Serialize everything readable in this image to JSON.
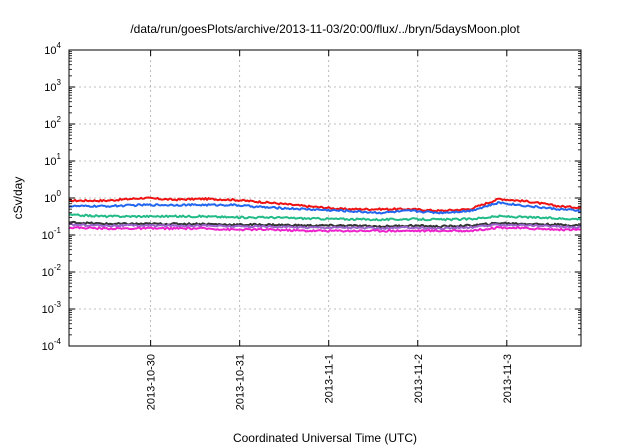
{
  "chart_data": {
    "type": "line",
    "title": "/data/run/goesPlots/archive/2013-11-03/20:00/flux/../bryn/5daysMoon.plot",
    "xlabel": "Coordinated Universal Time (UTC)",
    "ylabel": "cSv/day",
    "yscale": "log",
    "ylim": [
      0.0001,
      10000
    ],
    "xlim": [
      "2013-10-29 02:00",
      "2013-11-03 20:00"
    ],
    "grid": true,
    "legend": "none",
    "x_ticks": [
      "2013-10-30",
      "2013-10-31",
      "2013-11-1",
      "2013-11-2",
      "2013-11-3"
    ],
    "y_ticks": [
      {
        "value": 0.0001,
        "base": "10",
        "exp": "-4"
      },
      {
        "value": 0.001,
        "base": "10",
        "exp": "-3"
      },
      {
        "value": 0.01,
        "base": "10",
        "exp": "-2"
      },
      {
        "value": 0.1,
        "base": "10",
        "exp": "-1"
      },
      {
        "value": 1,
        "base": "10",
        "exp": "0"
      },
      {
        "value": 10,
        "base": "10",
        "exp": "1"
      },
      {
        "value": 100,
        "base": "10",
        "exp": "2"
      },
      {
        "value": 1000,
        "base": "10",
        "exp": "3"
      },
      {
        "value": 10000,
        "base": "10",
        "exp": "4"
      }
    ],
    "series": [
      {
        "color": "#ee1111",
        "x": [
          "2013-10-29 02:00",
          "2013-10-29 12:00",
          "2013-10-29 22:00",
          "2013-10-30 06:00",
          "2013-10-30 14:00",
          "2013-10-30 22:00",
          "2013-10-31 08:00",
          "2013-10-31 18:00",
          "2013-11-01 04:00",
          "2013-11-01 14:00",
          "2013-11-01 22:00",
          "2013-11-02 06:00",
          "2013-11-02 14:00",
          "2013-11-02 22:00",
          "2013-11-03 06:00",
          "2013-11-03 14:00",
          "2013-11-03 20:00"
        ],
        "y": [
          0.85,
          0.85,
          1.0,
          0.9,
          0.95,
          0.9,
          0.75,
          0.6,
          0.5,
          0.5,
          0.5,
          0.45,
          0.5,
          0.95,
          0.8,
          0.6,
          0.55
        ]
      },
      {
        "color": "#2266ee",
        "x": [
          "2013-10-29 02:00",
          "2013-10-29 12:00",
          "2013-10-29 22:00",
          "2013-10-30 06:00",
          "2013-10-30 14:00",
          "2013-10-30 22:00",
          "2013-10-31 08:00",
          "2013-10-31 18:00",
          "2013-11-01 04:00",
          "2013-11-01 14:00",
          "2013-11-01 22:00",
          "2013-11-02 06:00",
          "2013-11-02 14:00",
          "2013-11-02 22:00",
          "2013-11-03 06:00",
          "2013-11-03 14:00",
          "2013-11-03 20:00"
        ],
        "y": [
          0.6,
          0.6,
          0.65,
          0.65,
          0.65,
          0.65,
          0.55,
          0.5,
          0.45,
          0.4,
          0.45,
          0.4,
          0.45,
          0.75,
          0.6,
          0.5,
          0.45
        ]
      },
      {
        "color": "#22bb88",
        "x": [
          "2013-10-29 02:00",
          "2013-10-29 12:00",
          "2013-10-29 22:00",
          "2013-10-30 06:00",
          "2013-10-30 14:00",
          "2013-10-30 22:00",
          "2013-10-31 08:00",
          "2013-10-31 18:00",
          "2013-11-01 04:00",
          "2013-11-01 14:00",
          "2013-11-01 22:00",
          "2013-11-02 06:00",
          "2013-11-02 14:00",
          "2013-11-02 22:00",
          "2013-11-03 06:00",
          "2013-11-03 14:00",
          "2013-11-03 20:00"
        ],
        "y": [
          0.35,
          0.32,
          0.32,
          0.32,
          0.32,
          0.3,
          0.3,
          0.28,
          0.27,
          0.26,
          0.27,
          0.26,
          0.27,
          0.32,
          0.3,
          0.28,
          0.27
        ]
      },
      {
        "color": "#333333",
        "x": [
          "2013-10-29 02:00",
          "2013-10-29 12:00",
          "2013-10-29 22:00",
          "2013-10-30 06:00",
          "2013-10-30 14:00",
          "2013-10-30 22:00",
          "2013-10-31 08:00",
          "2013-10-31 18:00",
          "2013-11-01 04:00",
          "2013-11-01 14:00",
          "2013-11-01 22:00",
          "2013-11-02 06:00",
          "2013-11-02 14:00",
          "2013-11-02 22:00",
          "2013-11-03 06:00",
          "2013-11-03 14:00",
          "2013-11-03 20:00"
        ],
        "y": [
          0.22,
          0.2,
          0.2,
          0.2,
          0.2,
          0.19,
          0.19,
          0.18,
          0.18,
          0.17,
          0.18,
          0.17,
          0.18,
          0.21,
          0.2,
          0.19,
          0.18
        ]
      },
      {
        "color": "#9966cc",
        "x": [
          "2013-10-29 02:00",
          "2013-10-29 12:00",
          "2013-10-29 22:00",
          "2013-10-30 06:00",
          "2013-10-30 14:00",
          "2013-10-30 22:00",
          "2013-10-31 08:00",
          "2013-10-31 18:00",
          "2013-11-01 04:00",
          "2013-11-01 14:00",
          "2013-11-01 22:00",
          "2013-11-02 06:00",
          "2013-11-02 14:00",
          "2013-11-02 22:00",
          "2013-11-03 06:00",
          "2013-11-03 14:00",
          "2013-11-03 20:00"
        ],
        "y": [
          0.19,
          0.18,
          0.18,
          0.18,
          0.18,
          0.17,
          0.17,
          0.16,
          0.16,
          0.15,
          0.16,
          0.15,
          0.16,
          0.19,
          0.18,
          0.17,
          0.16
        ]
      },
      {
        "color": "#ee22cc",
        "x": [
          "2013-10-29 02:00",
          "2013-10-29 12:00",
          "2013-10-29 22:00",
          "2013-10-30 06:00",
          "2013-10-30 14:00",
          "2013-10-30 22:00",
          "2013-10-31 08:00",
          "2013-10-31 18:00",
          "2013-11-01 04:00",
          "2013-11-01 14:00",
          "2013-11-01 22:00",
          "2013-11-02 06:00",
          "2013-11-02 14:00",
          "2013-11-02 22:00",
          "2013-11-03 06:00",
          "2013-11-03 14:00",
          "2013-11-03 20:00"
        ],
        "y": [
          0.16,
          0.15,
          0.15,
          0.15,
          0.15,
          0.14,
          0.14,
          0.13,
          0.13,
          0.13,
          0.13,
          0.13,
          0.13,
          0.16,
          0.15,
          0.14,
          0.14
        ]
      }
    ]
  }
}
